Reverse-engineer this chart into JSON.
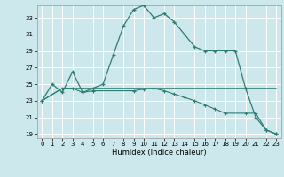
{
  "xlabel": "Humidex (Indice chaleur)",
  "bg_color": "#cde8ec",
  "grid_color": "#ffffff",
  "line_color": "#2e7d72",
  "xlim": [
    -0.5,
    23.5
  ],
  "ylim": [
    18.5,
    34.5
  ],
  "yticks": [
    19,
    21,
    23,
    25,
    27,
    29,
    31,
    33
  ],
  "xticks": [
    0,
    1,
    2,
    3,
    4,
    5,
    6,
    7,
    8,
    9,
    10,
    11,
    12,
    13,
    14,
    15,
    16,
    17,
    18,
    19,
    20,
    21,
    22,
    23
  ],
  "line1_x": [
    0,
    1,
    2,
    3,
    4,
    5,
    6,
    7,
    8,
    9,
    10,
    11,
    12,
    13,
    14,
    15,
    16,
    17,
    18,
    19,
    20,
    21,
    22,
    23
  ],
  "line1_y": [
    23,
    25,
    24,
    26.5,
    24,
    24.5,
    25,
    28.5,
    32,
    34,
    34.5,
    33,
    33.5,
    32.5,
    31,
    29.5,
    29,
    29,
    29,
    29,
    24.5,
    21,
    19.5,
    19
  ],
  "line2_x": [
    0,
    2,
    3,
    4,
    5,
    9,
    10,
    11,
    12,
    13,
    14,
    15,
    16,
    17,
    18,
    20,
    21,
    22,
    23
  ],
  "line2_y": [
    23,
    24.5,
    24.5,
    24,
    24.2,
    24.2,
    24.4,
    24.5,
    24.2,
    23.8,
    23.4,
    23.0,
    22.5,
    22.0,
    21.5,
    21.5,
    21.5,
    19.5,
    19.0
  ],
  "line3_x": [
    0,
    2,
    3,
    18,
    23
  ],
  "line3_y": [
    23.0,
    24.5,
    24.5,
    24.5,
    24.5
  ]
}
